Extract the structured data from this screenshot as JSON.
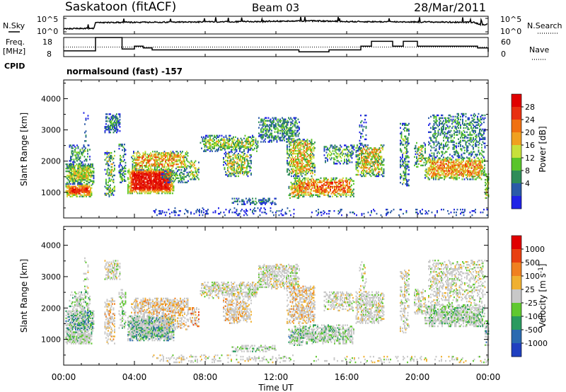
{
  "header": {
    "station": "Saskatoon (fitACF)",
    "beam": "Beam 03",
    "date": "28/Mar/2011"
  },
  "top_panels": {
    "nsky_label": "N.Sky",
    "nsearch_label": "N.Search",
    "freq_label_line1": "Freq.",
    "freq_label_line2": "[MHz]",
    "nave_label": "Nave",
    "cpid_label": "CPID",
    "cpid_value": "normalsound (fast) -157",
    "noise_ticks": [
      "10^5",
      "10^0"
    ],
    "freq_ticks": [
      "18",
      "8"
    ],
    "nave_ticks": [
      "60",
      "0"
    ]
  },
  "x_axis": {
    "label": "Time UT",
    "ticks": [
      "00:00",
      "04:00",
      "08:00",
      "12:00",
      "16:00",
      "20:00",
      "00:00"
    ]
  },
  "colors": {
    "power": [
      "#1f22e6",
      "#2a5aa8",
      "#2e8c58",
      "#59c42a",
      "#c7e03b",
      "#f0a020",
      "#f07010",
      "#e83010",
      "#e00000"
    ],
    "velocity": [
      "#2040c0",
      "#2a6ab0",
      "#2a9a60",
      "#60c830",
      "#c8c8c8",
      "#f0b030",
      "#f08020",
      "#e84010",
      "#e00000"
    ]
  },
  "chart_data": [
    {
      "type": "line",
      "name": "noise",
      "ylim_log10": [
        0,
        5
      ],
      "x_hours": [
        0,
        1.7,
        1.8,
        4,
        8,
        10.5,
        12,
        14,
        16,
        20,
        23.2,
        23.6,
        24
      ],
      "nsky_log10": [
        1.5,
        1.6,
        3.2,
        3.3,
        3.4,
        3.5,
        3.6,
        3.7,
        3.5,
        3.4,
        3.3,
        2.6,
        2.8
      ]
    },
    {
      "type": "line",
      "name": "frequency",
      "ylim": [
        8,
        18
      ],
      "x_hours": [
        0,
        1.8,
        3.3,
        4.0,
        4.5,
        5.0,
        13.3,
        15.0,
        16.8,
        17.4,
        18.6,
        19.2,
        20.0,
        23.4,
        24
      ],
      "freq_mhz": [
        11,
        18,
        12,
        13.5,
        12.5,
        11.5,
        10.5,
        11.5,
        13.5,
        16,
        13.5,
        16,
        13.5,
        12.5,
        10.5
      ],
      "nave_level": 30
    },
    {
      "type": "heatmap",
      "name": "power",
      "xlabel": "",
      "ylabel": "Slant Range [km]",
      "xlim_hours": [
        0,
        24
      ],
      "ylim_km": [
        180,
        4600
      ],
      "yticks": [
        1000,
        2000,
        3000,
        4000
      ],
      "colorbar_label": "Power [dB]",
      "colorbar_ticks": [
        4,
        8,
        12,
        16,
        20,
        24,
        28
      ],
      "colorbar_range": [
        0,
        30
      ]
    },
    {
      "type": "heatmap",
      "name": "velocity",
      "xlabel": "Time UT",
      "ylabel": "Slant Range [km]",
      "xlim_hours": [
        0,
        24
      ],
      "ylim_km": [
        180,
        4600
      ],
      "yticks": [
        1000,
        2000,
        3000,
        4000
      ],
      "colorbar_label": "Velocity [m s^-1]",
      "colorbar_ticks": [
        "1000",
        "500",
        "100",
        "25",
        "-25",
        "-100",
        "-500",
        "-1000"
      ]
    }
  ]
}
